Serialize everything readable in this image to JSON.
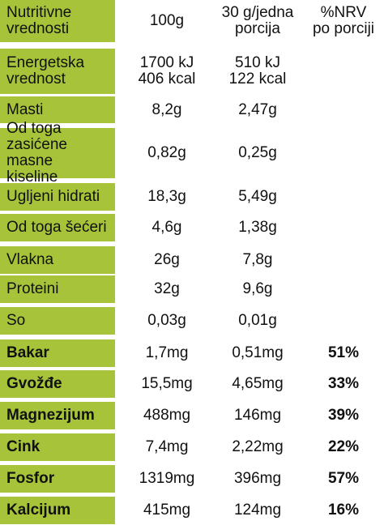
{
  "header": {
    "label": "Nutritivne\nvrednosti",
    "col1": "100g",
    "col2": "30 g/jedna\nporcija",
    "col3": "%NRV\npo porciji"
  },
  "rows": [
    {
      "label": "Energetska\nvrednost",
      "v100": "1700 kJ\n406 kcal",
      "vport": "510 kJ\n122 kcal",
      "nrv": "",
      "bold": false
    },
    {
      "label": "Masti",
      "v100": "8,2g",
      "vport": "2,47g",
      "nrv": "",
      "bold": false
    },
    {
      "label": "Od toga\nzasićene masne\nkiseline",
      "v100": "0,82g",
      "vport": "0,25g",
      "nrv": "",
      "bold": false
    },
    {
      "label": "Ugljeni hidrati",
      "v100": "18,3g",
      "vport": "5,49g",
      "nrv": "",
      "bold": false
    },
    {
      "label": "Od toga šećeri",
      "v100": "4,6g",
      "vport": "1,38g",
      "nrv": "",
      "bold": false
    },
    {
      "label": "Vlakna",
      "v100": "26g",
      "vport": "7,8g",
      "nrv": "",
      "bold": false
    },
    {
      "label": "Proteini",
      "v100": "32g",
      "vport": "9,6g",
      "nrv": "",
      "bold": false
    },
    {
      "label": "So",
      "v100": "0,03g",
      "vport": "0,01g",
      "nrv": "",
      "bold": false
    },
    {
      "label": "Bakar",
      "v100": "1,7mg",
      "vport": "0,51mg",
      "nrv": "51%",
      "bold": true
    },
    {
      "label": "Gvožđe",
      "v100": "15,5mg",
      "vport": "4,65mg",
      "nrv": "33%",
      "bold": true
    },
    {
      "label": "Magnezijum",
      "v100": "488mg",
      "vport": "146mg",
      "nrv": "39%",
      "bold": true
    },
    {
      "label": "Cink",
      "v100": "7,4mg",
      "vport": "2,22mg",
      "nrv": "22%",
      "bold": true
    },
    {
      "label": "Fosfor",
      "v100": "1319mg",
      "vport": "396mg",
      "nrv": "57%",
      "bold": true
    },
    {
      "label": "Kalcijum",
      "v100": "415mg",
      "vport": "124mg",
      "nrv": "16%",
      "bold": true
    }
  ]
}
